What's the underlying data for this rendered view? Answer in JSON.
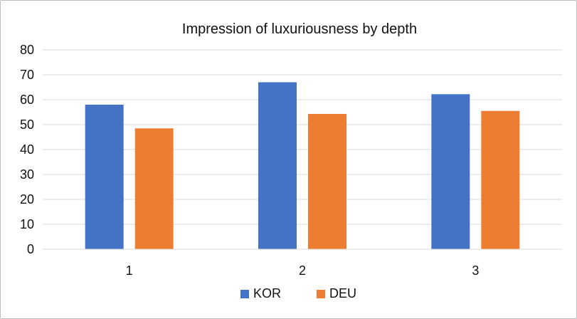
{
  "chart_data": {
    "type": "bar",
    "title": "Impression of luxuriousness by depth",
    "xlabel": "",
    "ylabel": "",
    "categories": [
      "1",
      "2",
      "3"
    ],
    "series": [
      {
        "name": "KOR",
        "color": "#4472c4",
        "values": [
          58,
          67,
          62.2
        ]
      },
      {
        "name": "DEU",
        "color": "#ed7d31",
        "values": [
          48.5,
          54.3,
          55.5
        ]
      }
    ],
    "ylim": [
      0,
      80
    ],
    "yticks": [
      "0",
      "10",
      "20",
      "30",
      "40",
      "50",
      "60",
      "70",
      "80"
    ],
    "grid": true,
    "legend_position": "bottom"
  }
}
